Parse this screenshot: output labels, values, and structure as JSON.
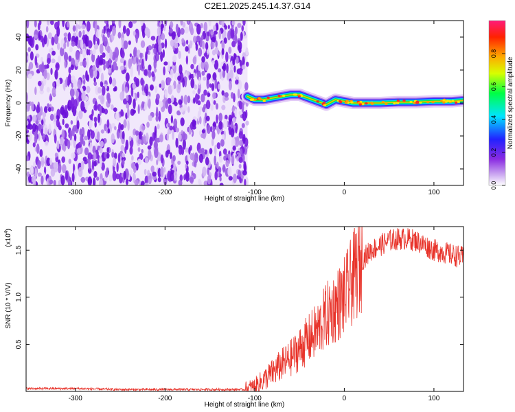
{
  "title": "C2E1.2025.245.14.37.G14",
  "chart_data": [
    {
      "type": "heatmap",
      "name": "spectrogram",
      "xlabel": "Height of straight line (km)",
      "ylabel": "Frequency (Hz)",
      "xlim": [
        -355,
        133
      ],
      "ylim": [
        -50,
        50
      ],
      "xticks": [
        -300,
        -200,
        -100,
        0,
        100
      ],
      "yticks": [
        -40,
        -20,
        0,
        20,
        40
      ],
      "xtick_labels": [
        "-300",
        "-200",
        "-100",
        "0",
        "100"
      ],
      "ytick_labels": [
        "-40",
        "-20",
        "0",
        "20",
        "40"
      ],
      "noise_region_x": [
        -355,
        -108
      ],
      "signal_trace": {
        "x": [
          -108,
          -100,
          -90,
          -80,
          -70,
          -60,
          -50,
          -40,
          -30,
          -20,
          -10,
          0,
          10,
          20,
          40,
          60,
          80,
          100,
          120,
          133
        ],
        "y": [
          4,
          2,
          2,
          3,
          4,
          5,
          5,
          3,
          1,
          -1,
          2,
          1,
          0,
          0,
          0,
          0.5,
          0.5,
          1,
          1,
          1.5
        ]
      },
      "colorbar": {
        "label": "Normalized spectral amplitude",
        "ticks": [
          0.0,
          0.2,
          0.4,
          0.6,
          0.8
        ],
        "tick_labels": [
          "0.0",
          "0.2",
          "0.4",
          "0.6",
          "0.8"
        ],
        "colors": [
          "#ffffff",
          "#8a2be2",
          "#0000ff",
          "#00ffff",
          "#00ff00",
          "#ffff00",
          "#ff8c00",
          "#ff0000",
          "#ff1493"
        ]
      }
    },
    {
      "type": "line",
      "name": "snr",
      "xlabel": "Height of straight line (km)",
      "ylabel": "SNR (10 * V/V)",
      "yexponent_label": "(x10",
      "yexponent_power": "4",
      "yexponent_close": ")",
      "xlim": [
        -355,
        133
      ],
      "ylim": [
        0,
        1.75
      ],
      "xticks": [
        -300,
        -200,
        -100,
        0,
        100
      ],
      "yticks": [
        0.5,
        1.0,
        1.5
      ],
      "xtick_labels": [
        "-300",
        "-200",
        "-100",
        "0",
        "100"
      ],
      "ytick_labels": [
        "0.5",
        "1.0",
        "1.5"
      ],
      "series": [
        {
          "name": "SNR",
          "color": "#e8332a",
          "x": [
            -355,
            -300,
            -250,
            -200,
            -150,
            -110,
            -100,
            -90,
            -80,
            -70,
            -60,
            -50,
            -40,
            -30,
            -20,
            -10,
            0,
            10,
            20,
            30,
            40,
            50,
            60,
            70,
            80,
            90,
            100,
            110,
            120,
            133
          ],
          "y": [
            0.03,
            0.03,
            0.02,
            0.02,
            0.02,
            0.02,
            0.05,
            0.12,
            0.2,
            0.28,
            0.35,
            0.45,
            0.55,
            0.65,
            0.8,
            0.9,
            1.0,
            1.2,
            1.4,
            1.5,
            1.55,
            1.6,
            1.62,
            1.62,
            1.6,
            1.55,
            1.5,
            1.48,
            1.45,
            1.42
          ]
        }
      ]
    }
  ]
}
